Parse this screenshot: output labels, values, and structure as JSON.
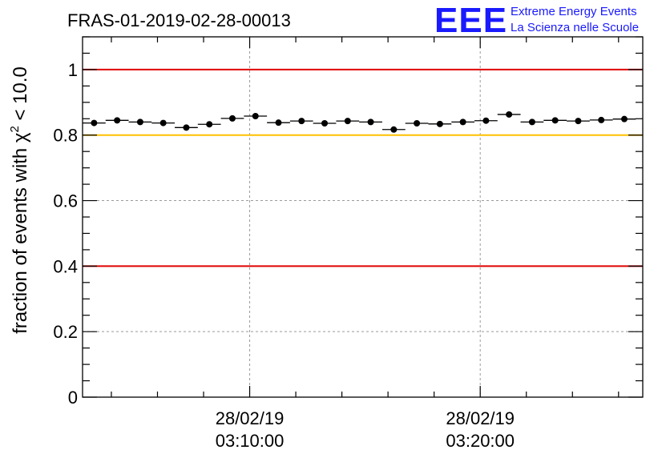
{
  "header": {
    "title": "FRAS-01-2019-02-28-00013",
    "logo_letters": "EEE",
    "logo_line1": "Extreme Energy Events",
    "logo_line2": "La Scienza nelle Scuole"
  },
  "colors": {
    "logo": "#1a1aff",
    "limit_red": "#e00000",
    "limit_yellow": "#ffc000",
    "marker": "#000000"
  },
  "chart_data": {
    "type": "scatter",
    "ylabel_prefix": "fraction of events with ",
    "ylabel_symbol": "χ",
    "ylabel_sup": "2",
    "ylabel_suffix": " < 10.0",
    "ylim": [
      0,
      1.1
    ],
    "yticks": [
      0,
      0.2,
      0.4,
      0.6,
      0.8,
      1
    ],
    "ytick_labels": [
      "0",
      "0.2",
      "0.4",
      "0.6",
      "0.8",
      "1"
    ],
    "xlim_minutes": [
      2.75,
      27.05
    ],
    "xticks_minutes": [
      10,
      20
    ],
    "xtick_labels": [
      {
        "date": "28/02/19",
        "time": "03:10:00"
      },
      {
        "date": "28/02/19",
        "time": "03:20:00"
      }
    ],
    "x_bin_halfwidth_minutes": 0.5,
    "x_minutes": [
      3.25,
      4.25,
      5.25,
      6.25,
      7.25,
      8.25,
      9.25,
      10.25,
      11.25,
      12.25,
      13.25,
      14.25,
      15.25,
      16.25,
      17.25,
      18.25,
      19.25,
      20.25,
      21.25,
      22.25,
      23.25,
      24.25,
      25.25,
      26.25
    ],
    "values": [
      0.837,
      0.845,
      0.84,
      0.837,
      0.823,
      0.833,
      0.851,
      0.858,
      0.838,
      0.843,
      0.836,
      0.843,
      0.84,
      0.817,
      0.836,
      0.834,
      0.84,
      0.844,
      0.863,
      0.84,
      0.845,
      0.843,
      0.846,
      0.849
    ],
    "reference_lines": [
      {
        "y": 1.0,
        "color": "#e00000"
      },
      {
        "y": 0.8,
        "color": "#ffc000"
      },
      {
        "y": 0.4,
        "color": "#e00000"
      }
    ],
    "grid": true
  }
}
